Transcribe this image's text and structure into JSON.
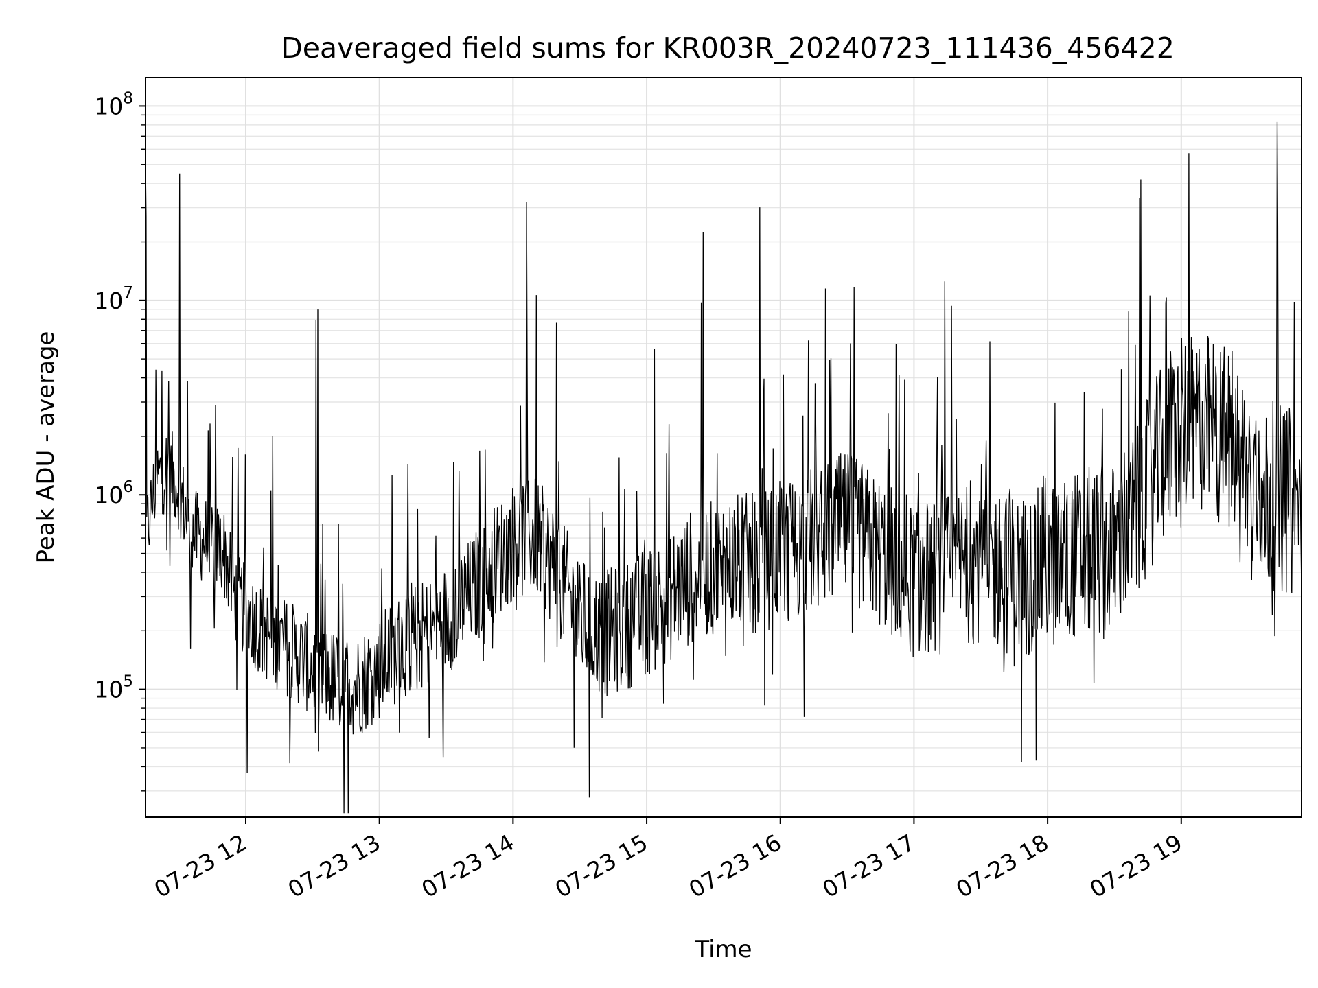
{
  "chart_data": {
    "type": "line",
    "title": "Deaveraged field sums for KR003R_20240723_111436_456422",
    "xlabel": "Time",
    "ylabel": "Peak ADU - average",
    "yscale": "log",
    "grid": true,
    "xlim": [
      "07-23 11:15",
      "07-23 19:54"
    ],
    "ylim": [
      22000,
      140000000
    ],
    "x_ticks": [
      "07-23 12",
      "07-23 13",
      "07-23 14",
      "07-23 15",
      "07-23 16",
      "07-23 17",
      "07-23 18",
      "07-23 19"
    ],
    "y_ticks": [
      {
        "base": "10",
        "exp": "5"
      },
      {
        "base": "10",
        "exp": "6"
      },
      {
        "base": "10",
        "exp": "7"
      },
      {
        "base": "10",
        "exp": "8"
      }
    ],
    "series": [
      {
        "color": "#000000",
        "x": [
          "07-23 11:15",
          "07-23 11:20",
          "07-23 11:25",
          "07-23 11:30",
          "07-23 11:35",
          "07-23 11:40",
          "07-23 11:45",
          "07-23 11:50",
          "07-23 11:55",
          "07-23 12:00",
          "07-23 12:10",
          "07-23 12:20",
          "07-23 12:30",
          "07-23 12:40",
          "07-23 12:50",
          "07-23 13:00",
          "07-23 13:10",
          "07-23 13:20",
          "07-23 13:30",
          "07-23 13:40",
          "07-23 13:50",
          "07-23 14:00",
          "07-23 14:10",
          "07-23 14:20",
          "07-23 14:30",
          "07-23 14:40",
          "07-23 14:50",
          "07-23 15:00",
          "07-23 15:10",
          "07-23 15:20",
          "07-23 15:30",
          "07-23 15:40",
          "07-23 15:50",
          "07-23 16:00",
          "07-23 16:10",
          "07-23 16:20",
          "07-23 16:30",
          "07-23 16:40",
          "07-23 16:50",
          "07-23 17:00",
          "07-23 17:10",
          "07-23 17:20",
          "07-23 17:30",
          "07-23 17:40",
          "07-23 17:50",
          "07-23 18:00",
          "07-23 18:10",
          "07-23 18:20",
          "07-23 18:30",
          "07-23 18:40",
          "07-23 18:50",
          "07-23 19:00",
          "07-23 19:10",
          "07-23 19:20",
          "07-23 19:30",
          "07-23 19:40",
          "07-23 19:50",
          "07-23 19:54"
        ],
        "y": [
          600000,
          1200000,
          1400000,
          1100000,
          650000,
          600000,
          560000,
          520000,
          300000,
          250000,
          190000,
          160000,
          130000,
          110000,
          105000,
          130000,
          170000,
          190000,
          230000,
          300000,
          420000,
          580000,
          620000,
          400000,
          230000,
          190000,
          210000,
          250000,
          300000,
          380000,
          420000,
          450000,
          440000,
          500000,
          560000,
          620000,
          700000,
          560000,
          450000,
          360000,
          380000,
          420000,
          460000,
          400000,
          380000,
          420000,
          480000,
          500000,
          520000,
          800000,
          1500000,
          2200000,
          2400000,
          2000000,
          1300000,
          1000000,
          900000,
          800000
        ]
      }
    ]
  }
}
